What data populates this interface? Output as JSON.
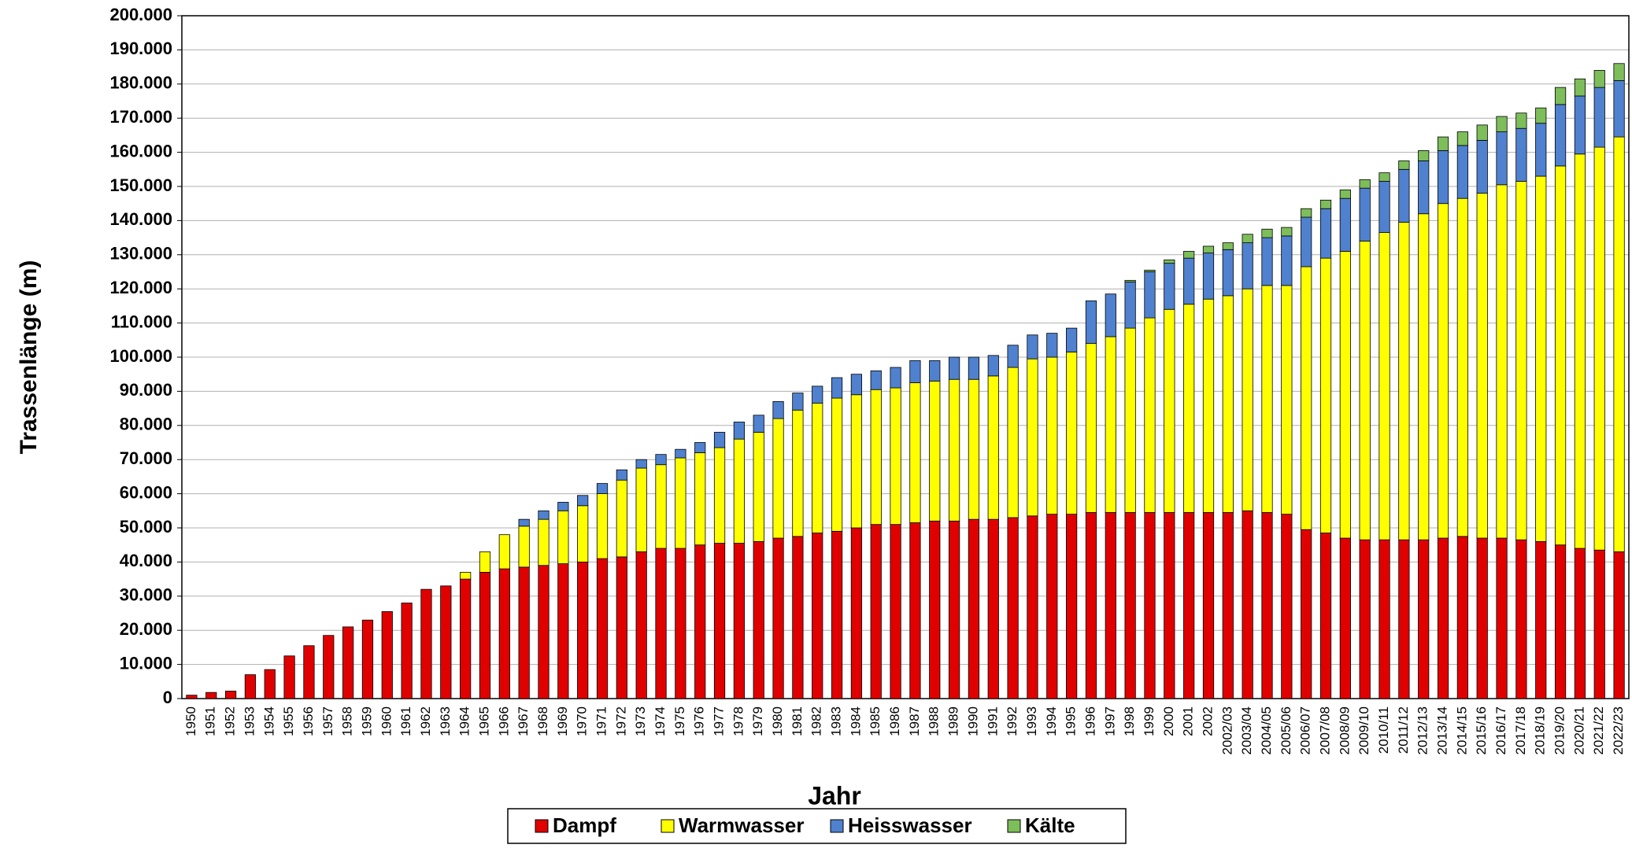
{
  "chart_data": {
    "type": "stacked_bar",
    "x_label": "Jahr",
    "y_label": "Trassenlänge (m)",
    "categories": [
      "1950",
      "1951",
      "1952",
      "1953",
      "1954",
      "1955",
      "1956",
      "1957",
      "1958",
      "1959",
      "1960",
      "1961",
      "1962",
      "1963",
      "1964",
      "1965",
      "1966",
      "1967",
      "1968",
      "1969",
      "1970",
      "1971",
      "1972",
      "1973",
      "1974",
      "1975",
      "1976",
      "1977",
      "1978",
      "1979",
      "1980",
      "1981",
      "1982",
      "1983",
      "1984",
      "1985",
      "1986",
      "1987",
      "1988",
      "1989",
      "1990",
      "1991",
      "1992",
      "1993",
      "1994",
      "1995",
      "1996",
      "1997",
      "1998",
      "1999",
      "2000",
      "2001",
      "2002",
      "2002/03",
      "2003/04",
      "2004/05",
      "2005/06",
      "2006/07",
      "2007/08",
      "2008/09",
      "2009/10",
      "2010/11",
      "2011/12",
      "2012/13",
      "2013/14",
      "2014/15",
      "2015/16",
      "2016/17",
      "2017/18",
      "2018/19",
      "2019/20",
      "2020/21",
      "2021/22",
      "2022/23"
    ],
    "series": [
      {
        "name": "Dampf",
        "color": "#e00000",
        "values": [
          1000,
          1800,
          2200,
          7000,
          8500,
          12500,
          15500,
          18500,
          21000,
          23000,
          25500,
          28000,
          32000,
          33000,
          35000,
          37000,
          38000,
          38500,
          39000,
          39500,
          40000,
          41000,
          41500,
          43000,
          44000,
          44000,
          45000,
          45500,
          45500,
          46000,
          47000,
          47500,
          48500,
          49000,
          50000,
          51000,
          51000,
          51500,
          52000,
          52000,
          52500,
          52500,
          53000,
          53500,
          54000,
          54000,
          54500,
          54500,
          54500,
          54500,
          54500,
          54500,
          54500,
          54500,
          55000,
          54500,
          54000,
          49500,
          48500,
          47000,
          46500,
          46500,
          46500,
          46500,
          47000,
          47500,
          47000,
          47000,
          46500,
          46000,
          45000,
          44000,
          43500,
          43000
        ]
      },
      {
        "name": "Warmwasser",
        "color": "#ffff00",
        "values": [
          0,
          0,
          0,
          0,
          0,
          0,
          0,
          0,
          0,
          0,
          0,
          0,
          0,
          0,
          2000,
          6000,
          10000,
          12000,
          13500,
          15500,
          16500,
          19000,
          22500,
          24500,
          24500,
          26500,
          27000,
          28000,
          30500,
          32000,
          35000,
          37000,
          38000,
          39000,
          39000,
          39500,
          40000,
          41000,
          41000,
          41500,
          41000,
          42000,
          44000,
          46000,
          46000,
          47500,
          49500,
          51500,
          54000,
          57000,
          59500,
          61000,
          62500,
          63500,
          65000,
          66500,
          67000,
          77000,
          80500,
          84000,
          87500,
          90000,
          93000,
          95500,
          98000,
          99000,
          101000,
          103500,
          105000,
          107000,
          111000,
          115500,
          118000,
          121500
        ]
      },
      {
        "name": "Heisswasser",
        "color": "#4f81cf",
        "values": [
          0,
          0,
          0,
          0,
          0,
          0,
          0,
          0,
          0,
          0,
          0,
          0,
          0,
          0,
          0,
          0,
          0,
          2000,
          2500,
          2500,
          3000,
          3000,
          3000,
          2500,
          3000,
          2500,
          3000,
          4500,
          5000,
          5000,
          5000,
          5000,
          5000,
          6000,
          6000,
          5500,
          6000,
          6500,
          6000,
          6500,
          6500,
          6000,
          6500,
          7000,
          7000,
          7000,
          12500,
          12500,
          13500,
          13500,
          13500,
          13500,
          13500,
          13500,
          13500,
          14000,
          14500,
          14500,
          14500,
          15500,
          15500,
          15000,
          15500,
          15500,
          15500,
          15500,
          15500,
          15500,
          15500,
          15500,
          18000,
          17000,
          17500,
          16500
        ]
      },
      {
        "name": "Kälte",
        "color": "#7dbd5a",
        "values": [
          0,
          0,
          0,
          0,
          0,
          0,
          0,
          0,
          0,
          0,
          0,
          0,
          0,
          0,
          0,
          0,
          0,
          0,
          0,
          0,
          0,
          0,
          0,
          0,
          0,
          0,
          0,
          0,
          0,
          0,
          0,
          0,
          0,
          0,
          0,
          0,
          0,
          0,
          0,
          0,
          0,
          0,
          0,
          0,
          0,
          0,
          0,
          0,
          500,
          500,
          1000,
          2000,
          2000,
          2000,
          2500,
          2500,
          2500,
          2500,
          2500,
          2500,
          2500,
          2500,
          2500,
          3000,
          4000,
          4000,
          4500,
          4500,
          4500,
          4500,
          5000,
          5000,
          5000,
          5000
        ]
      }
    ],
    "ylim": [
      0,
      200000
    ],
    "yticks": [
      0,
      {
        "value": 10000,
        "label": "10.000"
      },
      {
        "value": 20000,
        "label": "20.000"
      },
      {
        "value": 30000,
        "label": "30.000"
      },
      {
        "value": 40000,
        "label": "40.000"
      },
      {
        "value": 50000,
        "label": "50.000"
      },
      {
        "value": 60000,
        "label": "60.000"
      },
      {
        "value": 70000,
        "label": "70.000"
      },
      {
        "value": 80000,
        "label": "80.000"
      },
      {
        "value": 90000,
        "label": "90.000"
      },
      {
        "value": 100000,
        "label": "100.000"
      },
      {
        "value": 110000,
        "label": "110.000"
      },
      {
        "value": 120000,
        "label": "120.000"
      },
      {
        "value": 130000,
        "label": "130.000"
      },
      {
        "value": 140000,
        "label": "140.000"
      },
      {
        "value": 150000,
        "label": "150.000"
      },
      {
        "value": 160000,
        "label": "160.000"
      },
      {
        "value": 170000,
        "label": "170.000"
      },
      {
        "value": 180000,
        "label": "180.000"
      },
      {
        "value": 190000,
        "label": "190.000"
      },
      {
        "value": 200000,
        "label": "200.000"
      }
    ],
    "grid": true,
    "legend": "bottom"
  }
}
